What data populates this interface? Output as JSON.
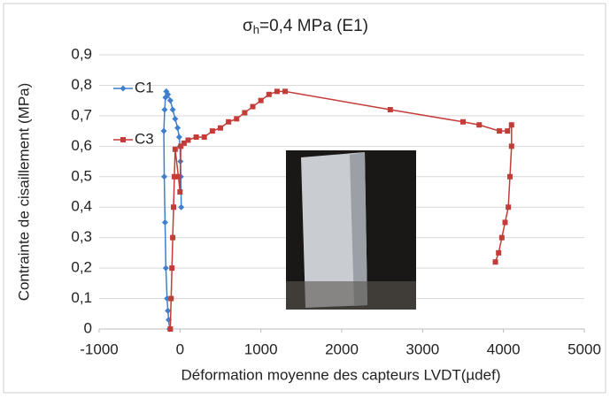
{
  "chart_data": {
    "type": "line",
    "title": {
      "symbol": "σ",
      "subscript": "h",
      "text": "=0,4 MPa (E1)"
    },
    "x_label": "Déformation moyenne des capteurs LVDT(µdef)",
    "y_label": "Contrainte de cisaillement (MPa)",
    "xlim": [
      -1000,
      5000
    ],
    "xticks": [
      -1000,
      0,
      1000,
      2000,
      3000,
      4000,
      5000
    ],
    "ylim": [
      0,
      0.9
    ],
    "yticks": [
      0,
      {
        "value": 0.1,
        "label": "0,1"
      },
      {
        "value": 0.2,
        "label": "0,2"
      },
      {
        "value": 0.3,
        "label": "0,3"
      },
      {
        "value": 0.4,
        "label": "0,4"
      },
      {
        "value": 0.5,
        "label": "0,5"
      },
      {
        "value": 0.6,
        "label": "0,6"
      },
      {
        "value": 0.7,
        "label": "0,7"
      },
      {
        "value": 0.8,
        "label": "0,8"
      },
      {
        "value": 0.9,
        "label": "0,9"
      }
    ],
    "grid": true,
    "legend": "upper left",
    "series": [
      {
        "name": "C1",
        "color": "#3f7fcc",
        "x": [
          -130,
          -140,
          -150,
          -160,
          -175,
          -185,
          -195,
          -200,
          -190,
          -180,
          -170,
          -150,
          -120,
          -90,
          -60,
          -30,
          -10,
          0,
          5,
          10,
          15
        ],
        "values": [
          0,
          0.03,
          0.06,
          0.1,
          0.2,
          0.35,
          0.5,
          0.65,
          0.72,
          0.76,
          0.78,
          0.77,
          0.75,
          0.72,
          0.69,
          0.66,
          0.63,
          0.6,
          0.55,
          0.5,
          0.4
        ]
      },
      {
        "name": "C3",
        "color": "#c43c38",
        "x": [
          -120,
          -110,
          -100,
          -90,
          -80,
          -70,
          -60,
          -20,
          0,
          10,
          50,
          100,
          200,
          300,
          400,
          500,
          600,
          700,
          800,
          900,
          1000,
          1100,
          1200,
          1300,
          2600,
          3500,
          3700,
          3950,
          4050,
          4100,
          4100,
          4080,
          4060,
          4020,
          3980,
          3940,
          3900
        ],
        "values": [
          0,
          0.1,
          0.2,
          0.3,
          0.4,
          0.5,
          0.59,
          0.5,
          0.45,
          0.6,
          0.61,
          0.62,
          0.63,
          0.63,
          0.65,
          0.66,
          0.68,
          0.69,
          0.71,
          0.73,
          0.75,
          0.77,
          0.78,
          0.78,
          0.72,
          0.68,
          0.67,
          0.65,
          0.65,
          0.67,
          0.6,
          0.5,
          0.4,
          0.35,
          0.3,
          0.25,
          0.22
        ]
      }
    ]
  }
}
